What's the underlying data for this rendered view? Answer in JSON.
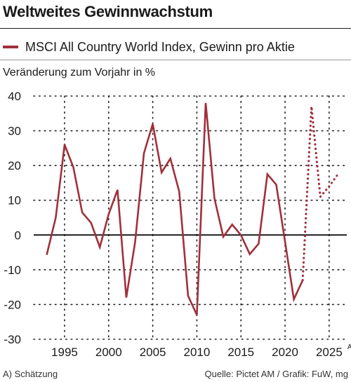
{
  "title": "Weltweites Gewinnwachstum",
  "legend": {
    "label": "MSCI All Country World Index, Gewinn pro Aktie"
  },
  "footer": {
    "note": "A) Schätzung",
    "source": "Quelle: Pictet AM / Grafik: FuW, mg"
  },
  "colors": {
    "series": "#a0303a",
    "grid": "#222222",
    "zero_line": "#000000"
  },
  "chart_data": {
    "type": "line",
    "title": "Weltweites Gewinnwachstum",
    "ylabel": "Veränderung zum Vorjahr in %",
    "xlabel": "",
    "ylim": [
      -30,
      40
    ],
    "xlim": [
      1991.5,
      2027
    ],
    "yticks": [
      40,
      30,
      20,
      10,
      0,
      -10,
      -20,
      -30
    ],
    "xticks": [
      {
        "value": 1995,
        "label": "1995"
      },
      {
        "value": 2000,
        "label": "2000"
      },
      {
        "value": 2005,
        "label": "2005"
      },
      {
        "value": 2010,
        "label": "2010"
      },
      {
        "value": 2015,
        "label": "2015"
      },
      {
        "value": 2020,
        "label": "2020"
      },
      {
        "value": 2025,
        "label": "2025",
        "superscript": "A"
      }
    ],
    "grid": {
      "horizontal": true,
      "vertical": true,
      "style": "dotted"
    },
    "series": [
      {
        "name": "MSCI All Country World Index, Gewinn pro Aktie",
        "style": "solid",
        "x": [
          1993,
          1994,
          1995,
          1996,
          1997,
          1998,
          1999,
          2000,
          2001,
          2002,
          2003,
          2004,
          2005,
          2006,
          2007,
          2008,
          2009,
          2010,
          2011,
          2012,
          2013,
          2014,
          2015,
          2016,
          2017,
          2018,
          2019,
          2020,
          2021,
          2022
        ],
        "y": [
          -5.5,
          5,
          26,
          19.5,
          6.5,
          3.5,
          -3.5,
          6,
          13,
          -18,
          -2,
          23.5,
          32,
          18,
          22,
          12.5,
          -17.5,
          -23,
          38,
          10.5,
          -0.5,
          3,
          0,
          -5.5,
          -2.5,
          17.5,
          14.5,
          -2,
          -18.5,
          -13
        ]
      },
      {
        "name": "Schätzung",
        "style": "dotted",
        "x": [
          2022,
          2023,
          2024,
          2025,
          2026
        ],
        "y": [
          -13,
          37,
          11,
          14,
          17.5
        ]
      }
    ]
  }
}
